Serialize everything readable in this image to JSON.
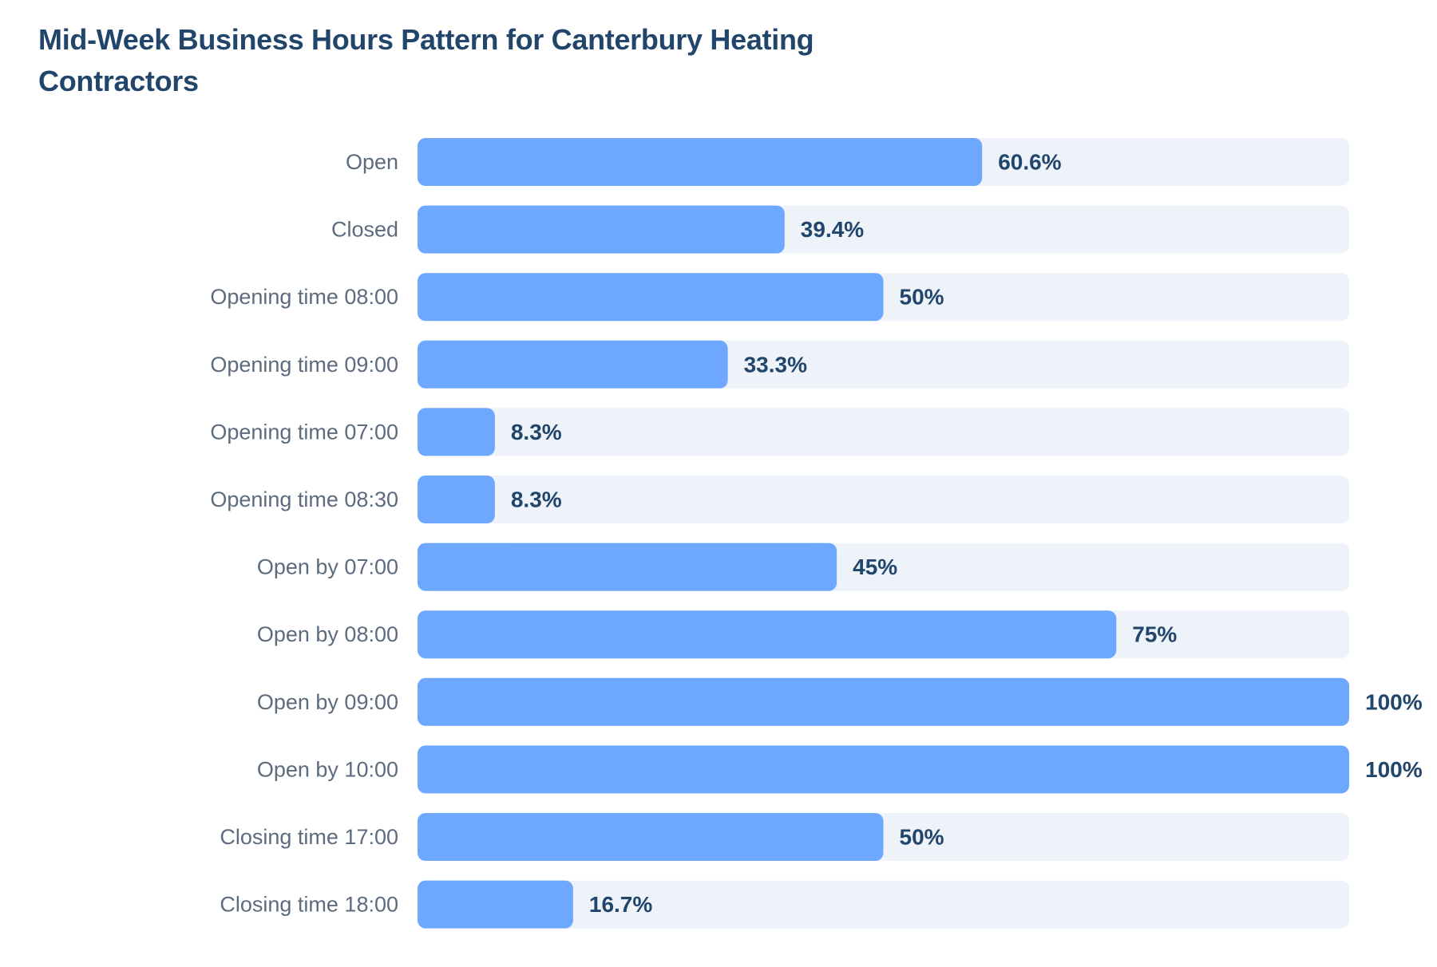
{
  "chart_data": {
    "type": "bar",
    "orientation": "horizontal",
    "title": "Mid-Week Business Hours Pattern for Canterbury Heating Contractors",
    "xlabel": "",
    "ylabel": "",
    "xlim": [
      0,
      100
    ],
    "grid": false,
    "legend": "none",
    "categories": [
      "Open",
      "Closed",
      "Opening time 08:00",
      "Opening time 09:00",
      "Opening time 07:00",
      "Opening time 08:30",
      "Open by 07:00",
      "Open by 08:00",
      "Open by 09:00",
      "Open by 10:00",
      "Closing time 17:00",
      "Closing time 18:00"
    ],
    "values": [
      60.6,
      39.4,
      50,
      33.3,
      8.3,
      8.3,
      45,
      75,
      100,
      100,
      50,
      16.7
    ],
    "value_labels": [
      "60.6%",
      "39.4%",
      "50%",
      "33.3%",
      "8.3%",
      "8.3%",
      "45%",
      "75%",
      "100%",
      "100%",
      "50%",
      "16.7%"
    ]
  },
  "colors": {
    "bar": "#6ea8fe",
    "track": "#eef3fa",
    "title": "#22466b",
    "value_text": "#22466b",
    "category_text": "#5d6b7e"
  }
}
